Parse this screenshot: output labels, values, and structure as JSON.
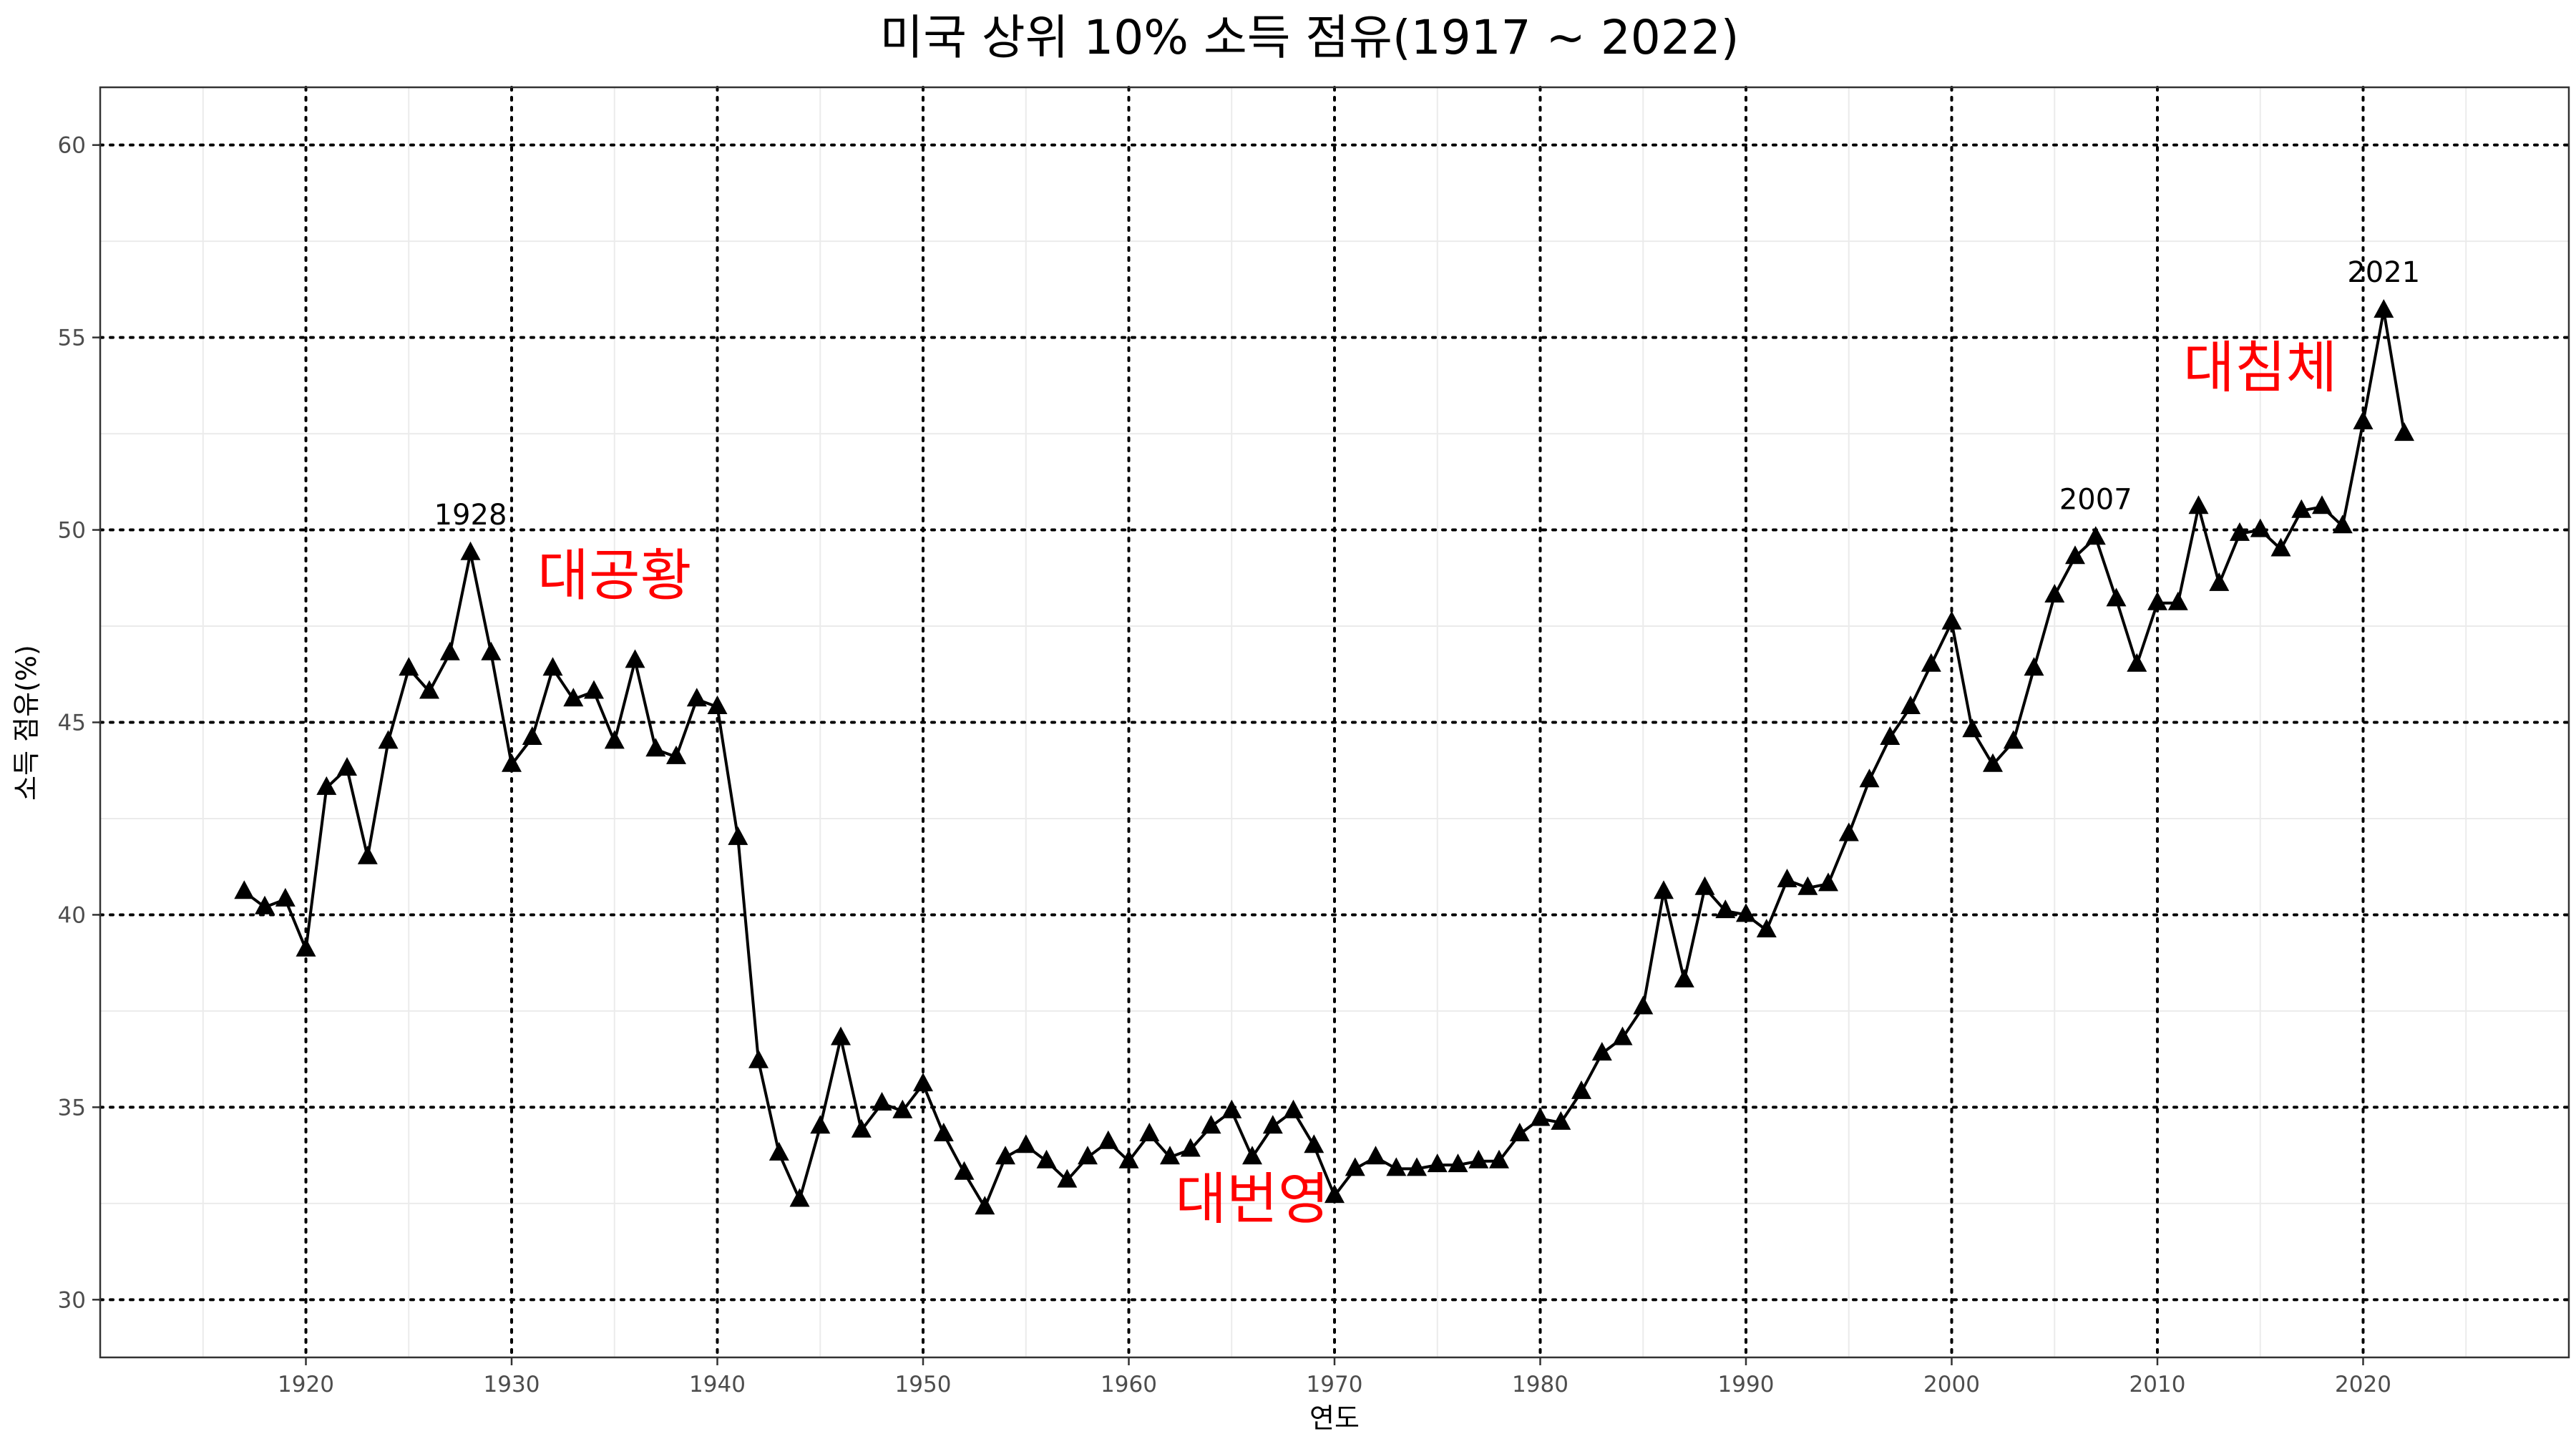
{
  "chart_data": {
    "type": "line",
    "title": "미국 상위 10% 소득 점유(1917 ~ 2022)",
    "xlabel": "연도",
    "ylabel": "소득 점유(%)",
    "xlim": [
      1910,
      2030
    ],
    "ylim": [
      28.5,
      61.5
    ],
    "x_ticks": [
      1920,
      1930,
      1940,
      1950,
      1960,
      1970,
      1980,
      1990,
      2000,
      2010,
      2020
    ],
    "y_ticks": [
      30,
      35,
      40,
      45,
      50,
      55,
      60
    ],
    "grid": true,
    "marker": "triangle",
    "line_color": "#000000",
    "series": [
      {
        "x": [
          1917,
          1918,
          1919,
          1920,
          1921,
          1922,
          1923,
          1924,
          1925,
          1926,
          1927,
          1928,
          1929,
          1930,
          1931,
          1932,
          1933,
          1934,
          1935,
          1936,
          1937,
          1938,
          1939,
          1940,
          1941,
          1942,
          1943,
          1944,
          1945,
          1946,
          1947,
          1948,
          1949,
          1950,
          1951,
          1952,
          1953,
          1954,
          1955,
          1956,
          1957,
          1958,
          1959,
          1960,
          1961,
          1962,
          1963,
          1964,
          1965,
          1966,
          1967,
          1968,
          1969,
          1970,
          1971,
          1972,
          1973,
          1974,
          1975,
          1976,
          1977,
          1978,
          1979,
          1980,
          1981,
          1982,
          1983,
          1984,
          1985,
          1986,
          1987,
          1988,
          1989,
          1990,
          1991,
          1992,
          1993,
          1994,
          1995,
          1996,
          1997,
          1998,
          1999,
          2000,
          2001,
          2002,
          2003,
          2004,
          2005,
          2006,
          2007,
          2008,
          2009,
          2010,
          2011,
          2012,
          2013,
          2014,
          2015,
          2016,
          2017,
          2018,
          2019,
          2020,
          2021,
          2022
        ],
        "y": [
          40.6,
          40.2,
          40.4,
          39.1,
          43.3,
          43.8,
          41.5,
          44.5,
          46.4,
          45.8,
          46.8,
          49.4,
          46.8,
          43.9,
          44.6,
          46.4,
          45.6,
          45.8,
          44.5,
          46.6,
          44.3,
          44.1,
          45.6,
          45.4,
          42.0,
          36.2,
          33.8,
          32.6,
          34.5,
          36.8,
          34.4,
          35.1,
          34.9,
          35.6,
          34.3,
          33.3,
          32.4,
          33.7,
          34.0,
          33.6,
          33.1,
          33.7,
          34.1,
          33.6,
          34.3,
          33.7,
          33.9,
          34.5,
          34.9,
          33.7,
          34.5,
          34.9,
          34.0,
          32.7,
          33.4,
          33.7,
          33.4,
          33.4,
          33.5,
          33.5,
          33.6,
          33.6,
          34.3,
          34.7,
          34.6,
          35.4,
          36.4,
          36.8,
          37.6,
          40.6,
          38.3,
          40.7,
          40.1,
          40.0,
          39.6,
          40.9,
          40.7,
          40.8,
          42.1,
          43.5,
          44.6,
          45.4,
          46.5,
          47.6,
          44.8,
          43.9,
          44.5,
          46.4,
          48.3,
          49.3,
          49.8,
          48.2,
          46.5,
          48.1,
          48.1,
          50.6,
          48.6,
          49.9,
          50.0,
          49.5,
          50.5,
          50.6,
          50.1,
          52.8,
          55.7,
          52.5
        ]
      }
    ],
    "annotations": {
      "years": [
        {
          "text": "1928",
          "x": 1928,
          "y": 49.4
        },
        {
          "text": "2007",
          "x": 2007,
          "y": 49.8
        },
        {
          "text": "2021",
          "x": 2021,
          "y": 55.7
        }
      ],
      "eras": [
        {
          "text": "대공황",
          "x": 1935,
          "y": 48.8
        },
        {
          "text": "대번영",
          "x": 1966,
          "y": 32.6
        },
        {
          "text": "대침체",
          "x": 2015,
          "y": 54.2
        }
      ]
    }
  }
}
